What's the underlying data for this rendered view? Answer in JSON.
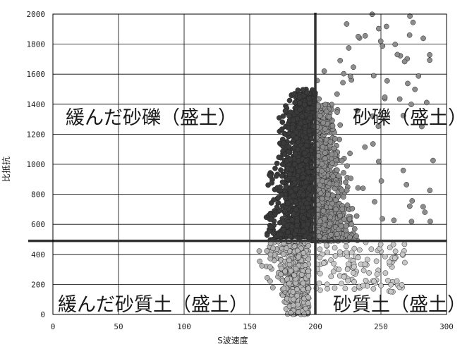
{
  "chart_data": {
    "type": "scatter",
    "xlabel": "S波速度",
    "ylabel": "比抵抗",
    "xlim": [
      0,
      300
    ],
    "ylim": [
      0,
      2000
    ],
    "x_ticks": [
      "0",
      "50",
      "100",
      "150",
      "200",
      "250",
      "300"
    ],
    "y_ticks": [
      "0",
      "200",
      "400",
      "600",
      "800",
      "1000",
      "1200",
      "1400",
      "1600",
      "1800",
      "2000"
    ],
    "grid": true,
    "threshold_lines": {
      "x": 200,
      "y": 490
    },
    "regions": {
      "upper_left": "緩んだ砂礫（盛土）",
      "upper_right": "砂礫（盛土）",
      "lower_left": "緩んだ砂質土（盛土）",
      "lower_right": "砂質土（盛土）"
    },
    "point_clusters": [
      {
        "group": "upper_left",
        "x_range": [
          150,
          200
        ],
        "y_range": [
          490,
          1500
        ],
        "approx_count": 1400,
        "color": "#3a3a3a"
      },
      {
        "group": "upper_right",
        "x_range": [
          200,
          240
        ],
        "y_range": [
          490,
          1400
        ],
        "approx_count": 800,
        "color": "#8c8c8c"
      },
      {
        "group": "upper_right_sparse",
        "x_range": [
          200,
          290
        ],
        "y_range": [
          600,
          2000
        ],
        "approx_count": 80,
        "color": "#8c8c8c"
      },
      {
        "group": "lower_left",
        "x_range": [
          145,
          200
        ],
        "y_range": [
          0,
          490
        ],
        "approx_count": 500,
        "color": "#b4b4b4"
      },
      {
        "group": "lower_right",
        "x_range": [
          200,
          270
        ],
        "y_range": [
          150,
          490
        ],
        "approx_count": 120,
        "color": "#c8c8c8"
      }
    ],
    "colors": {
      "frame": "#000000",
      "grid": "#000000",
      "threshold": "#333333"
    }
  }
}
